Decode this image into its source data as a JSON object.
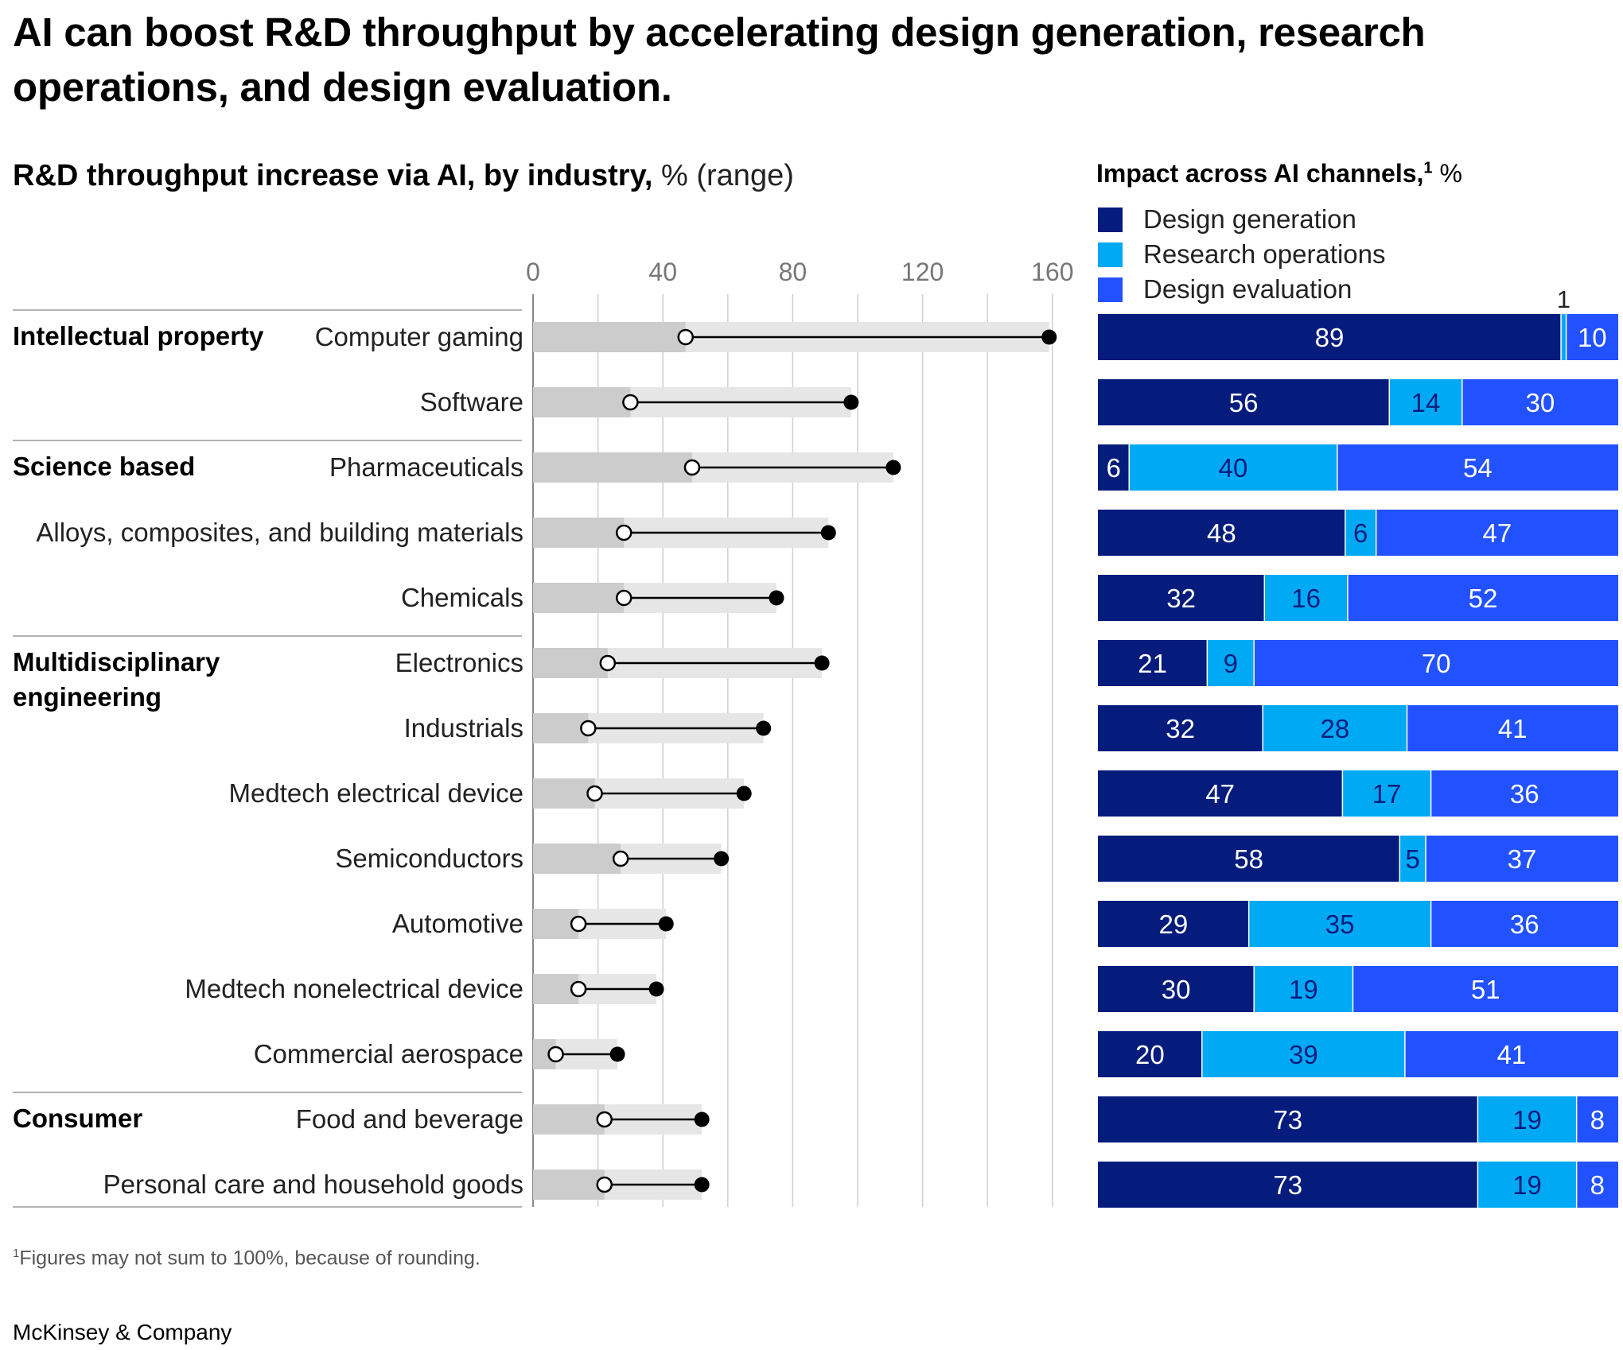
{
  "title": "AI can boost R&D throughput by accelerating design generation, research operations, and design evaluation.",
  "left_title": {
    "bold": "R&D throughput increase via AI, by industry,",
    "unit": "% (range)"
  },
  "right_title": {
    "bold": "Impact across AI channels,",
    "sup": "1",
    "unit": "%"
  },
  "legend": [
    {
      "label": "Design generation",
      "color": "#051c7d"
    },
    {
      "label": "Research operations",
      "color": "#00a9f4"
    },
    {
      "label": "Design evaluation",
      "color": "#2251ff"
    }
  ],
  "footnote": {
    "sup": "1",
    "text": "Figures may not sum to 100%, because of rounding."
  },
  "source": "McKinsey & Company",
  "colors": {
    "range_bg": "#e6e6e6",
    "range_fill": "#cccccc",
    "gridline": "#cfcfcf",
    "separator": "#999999",
    "text": "#222222"
  },
  "chart_data": [
    {
      "type": "dumbbell",
      "title": "R&D throughput increase via AI, by industry, % (range)",
      "xlim": [
        0,
        160
      ],
      "ticks": [
        0,
        40,
        80,
        120,
        160
      ],
      "groups": [
        {
          "name": "Intellectual property",
          "start": 0,
          "count": 2
        },
        {
          "name": "Science based",
          "start": 2,
          "count": 3
        },
        {
          "name": "Multidisciplinary engineering",
          "start": 5,
          "count": 7
        },
        {
          "name": "Consumer",
          "start": 12,
          "count": 2
        }
      ],
      "categories": [
        "Computer gaming",
        "Software",
        "Pharmaceuticals",
        "Alloys, composites, and building materials",
        "Chemicals",
        "Electronics",
        "Industrials",
        "Medtech electrical device",
        "Semiconductors",
        "Automotive",
        "Medtech nonelectrical device",
        "Commercial aerospace",
        "Food and beverage",
        "Personal care and household goods"
      ],
      "low": [
        47,
        30,
        49,
        28,
        28,
        23,
        17,
        19,
        27,
        14,
        14,
        7,
        22,
        22
      ],
      "high": [
        159,
        98,
        111,
        91,
        75,
        89,
        71,
        65,
        58,
        41,
        38,
        26,
        52,
        52
      ]
    },
    {
      "type": "stacked-bar",
      "title": "Impact across AI channels, %",
      "series": [
        {
          "name": "Design generation",
          "values": [
            89,
            56,
            6,
            48,
            32,
            21,
            32,
            47,
            58,
            29,
            30,
            20,
            73,
            73
          ]
        },
        {
          "name": "Research operations",
          "values": [
            1,
            14,
            40,
            6,
            16,
            9,
            28,
            17,
            5,
            35,
            19,
            39,
            19,
            19
          ]
        },
        {
          "name": "Design evaluation",
          "values": [
            10,
            30,
            54,
            47,
            52,
            70,
            41,
            36,
            37,
            36,
            51,
            41,
            8,
            8
          ]
        }
      ],
      "outside_labels": [
        {
          "row": 0,
          "series": 1,
          "text": "1"
        }
      ]
    }
  ]
}
